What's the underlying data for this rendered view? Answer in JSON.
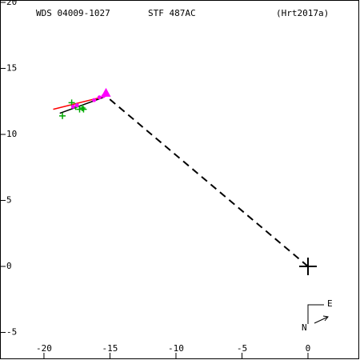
{
  "chart_data": {
    "type": "scatter",
    "header": [
      "WDS 04009-1027",
      "STF 487AC",
      "(Hrt2017a)"
    ],
    "xlim": [
      -23.33,
      3.94
    ],
    "ylim": [
      -7.09,
      20.18
    ],
    "xticks": [
      -20,
      -15,
      -10,
      -5,
      0
    ],
    "yticks": [
      20,
      15,
      10,
      5,
      0,
      -5
    ],
    "lines": [
      {
        "color": "#000000",
        "dashed": true,
        "x": [
          0,
          -15.3
        ],
        "y": [
          0,
          12.9
        ]
      },
      {
        "color": "#ff0000",
        "dashed": false,
        "x": [
          -19.3,
          -15.3
        ],
        "y": [
          11.9,
          12.9
        ]
      },
      {
        "color": "#000000",
        "dashed": false,
        "x": [
          -18.8,
          -15.5
        ],
        "y": [
          11.6,
          12.8
        ]
      }
    ],
    "series": [
      {
        "color": "#00aa00",
        "marker": "plus",
        "x": [
          -18.6,
          -17.9,
          -17.6,
          -17.3,
          -17.1,
          -17.0
        ],
        "y": [
          11.4,
          12.4,
          12.1,
          11.9,
          12.0,
          11.9
        ]
      },
      {
        "color": "#ff00ff",
        "marker": "dot",
        "x": [
          -17.8,
          -17.5,
          -16.2,
          -15.8,
          -15.5
        ],
        "y": [
          12.1,
          12.2,
          12.6,
          12.8,
          12.9
        ]
      },
      {
        "color": "#ff00ff",
        "marker": "triangle",
        "x": [
          -15.3
        ],
        "y": [
          13.1
        ]
      },
      {
        "color": "#000000",
        "marker": "cross",
        "x": [
          0
        ],
        "y": [
          0
        ]
      }
    ],
    "compass": {
      "east": "E",
      "north": "N"
    }
  }
}
